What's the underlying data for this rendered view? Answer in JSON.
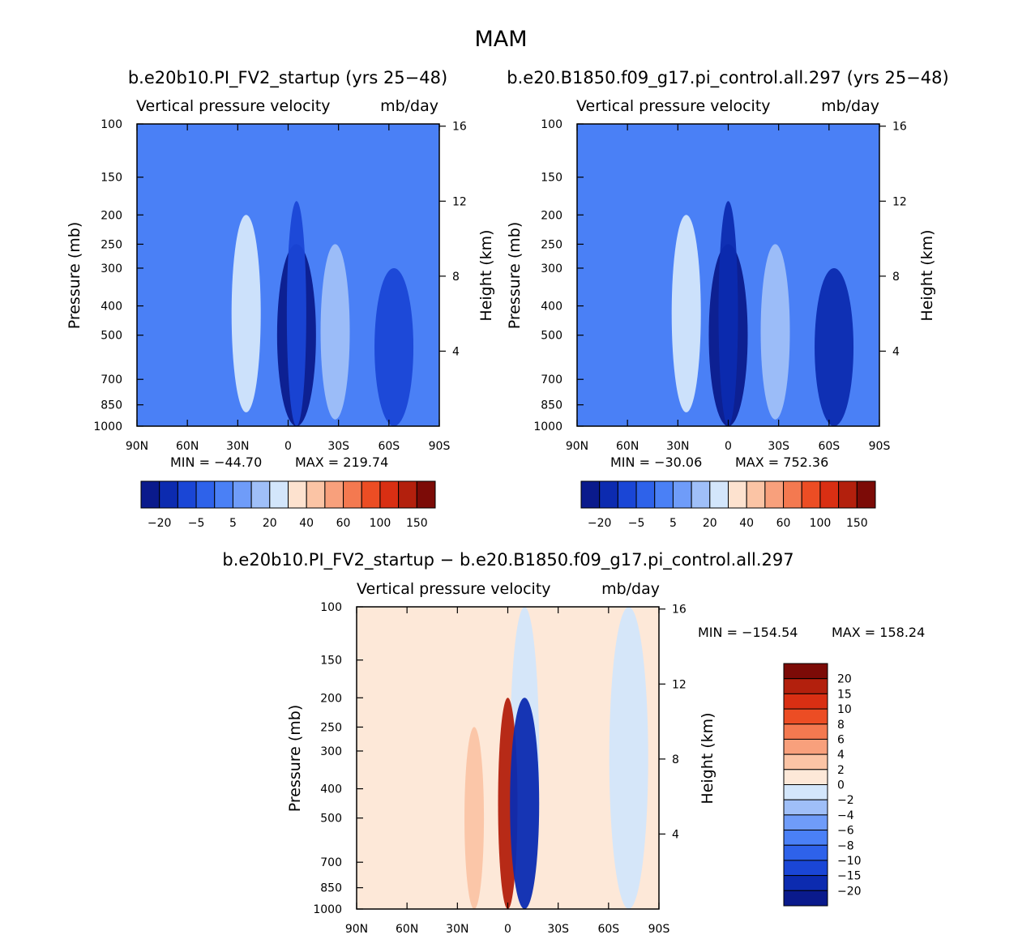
{
  "figure": {
    "season": "MAM"
  },
  "colors": {
    "abs_palette": [
      "#0a1a8c",
      "#0c2bb0",
      "#1a46d6",
      "#2e62ea",
      "#4a80f6",
      "#6f9cf9",
      "#9fbff8",
      "#d3e6fb",
      "#fde2cf",
      "#fbc4a5",
      "#f8a07c",
      "#f47950",
      "#ec4d24",
      "#d92f13",
      "#b3200d",
      "#7c0b07"
    ],
    "diff_palette": [
      "#0a1a8c",
      "#0c2bb0",
      "#1a46d6",
      "#2e62ea",
      "#4a80f6",
      "#6f9cf9",
      "#9fbff8",
      "#d3e6fb",
      "#fde8d8",
      "#fbc4a5",
      "#f8a07c",
      "#f47950",
      "#ec4d24",
      "#d92f13",
      "#b3200d",
      "#7c0b07"
    ],
    "abs_background": "#4a80f6",
    "diff_background": "#fde8d8"
  },
  "chart_data": [
    {
      "type": "heatmap",
      "title": "b.e20b10.PI_FV2_startup (yrs 25−48)",
      "subtitle": "Vertical pressure velocity",
      "units": "mb/day",
      "xlabel": "",
      "ylabel": "Pressure (mb)",
      "ylabel_right": "Height (km)",
      "x_ticks": [
        "90N",
        "60N",
        "30N",
        "0",
        "30S",
        "60S",
        "90S"
      ],
      "y_ticks": [
        "100",
        "150",
        "200",
        "250",
        "300",
        "400",
        "500",
        "700",
        "850",
        "1000"
      ],
      "y_ticks_right": [
        "16",
        "12",
        "8",
        "4"
      ],
      "ylim": [
        1000,
        100
      ],
      "min_label": "MIN = −44.70",
      "max_label": "MAX = 219.74",
      "min": -44.7,
      "max": 219.74,
      "colorbar_labels": [
        "−20",
        "−5",
        "5",
        "20",
        "40",
        "60",
        "100",
        "150"
      ],
      "cells": [
        {
          "lat": 60,
          "p": [
            100,
            1000
          ],
          "level": 4
        },
        {
          "lat": 25,
          "p": [
            200,
            900
          ],
          "level": 7
        },
        {
          "lat": -5,
          "p": [
            250,
            1000
          ],
          "level": 0
        },
        {
          "lat": -5,
          "p": [
            180,
            1000
          ],
          "level": 2
        },
        {
          "lat": -28,
          "p": [
            250,
            950
          ],
          "level": 6
        },
        {
          "lat": -63,
          "p": [
            300,
            1000
          ],
          "level": 2
        }
      ]
    },
    {
      "type": "heatmap",
      "title": "b.e20.B1850.f09_g17.pi_control.all.297 (yrs 25−48)",
      "subtitle": "Vertical pressure velocity",
      "units": "mb/day",
      "xlabel": "",
      "ylabel": "Pressure (mb)",
      "ylabel_right": "Height (km)",
      "x_ticks": [
        "90N",
        "60N",
        "30N",
        "0",
        "30S",
        "60S",
        "90S"
      ],
      "y_ticks": [
        "100",
        "150",
        "200",
        "250",
        "300",
        "400",
        "500",
        "700",
        "850",
        "1000"
      ],
      "y_ticks_right": [
        "16",
        "12",
        "8",
        "4"
      ],
      "ylim": [
        1000,
        100
      ],
      "min_label": "MIN = −30.06",
      "max_label": "MAX = 752.36",
      "min": -30.06,
      "max": 752.36,
      "colorbar_labels": [
        "−20",
        "−5",
        "5",
        "20",
        "40",
        "60",
        "100",
        "150"
      ],
      "cells": [
        {
          "lat": 60,
          "p": [
            100,
            1000
          ],
          "level": 4
        },
        {
          "lat": 25,
          "p": [
            200,
            900
          ],
          "level": 7
        },
        {
          "lat": 0,
          "p": [
            250,
            1000
          ],
          "level": 0
        },
        {
          "lat": 0,
          "p": [
            180,
            1000
          ],
          "level": 1
        },
        {
          "lat": -28,
          "p": [
            250,
            950
          ],
          "level": 6
        },
        {
          "lat": -63,
          "p": [
            300,
            1000
          ],
          "level": 1
        }
      ]
    },
    {
      "type": "heatmap",
      "title": "b.e20b10.PI_FV2_startup − b.e20.B1850.f09_g17.pi_control.all.297",
      "subtitle": "Vertical pressure velocity",
      "units": "mb/day",
      "xlabel": "",
      "ylabel": "Pressure (mb)",
      "ylabel_right": "Height (km)",
      "x_ticks": [
        "90N",
        "60N",
        "30N",
        "0",
        "30S",
        "60S",
        "90S"
      ],
      "y_ticks": [
        "100",
        "150",
        "200",
        "250",
        "300",
        "400",
        "500",
        "700",
        "850",
        "1000"
      ],
      "y_ticks_right": [
        "16",
        "12",
        "8",
        "4"
      ],
      "ylim": [
        1000,
        100
      ],
      "min_label": "MIN = −154.54",
      "max_label": "MAX = 158.24",
      "min": -154.54,
      "max": 158.24,
      "colorbar_labels": [
        "20",
        "15",
        "10",
        "8",
        "6",
        "4",
        "2",
        "0",
        "−2",
        "−4",
        "−6",
        "−8",
        "−10",
        "−15",
        "−20"
      ],
      "cells": [
        {
          "lat": 20,
          "p": [
            250,
            1000
          ],
          "level": 9
        },
        {
          "lat": -10,
          "p": [
            100,
            1000
          ],
          "level": 7
        },
        {
          "lat": -72,
          "p": [
            100,
            1000
          ],
          "level": 7
        },
        {
          "lat": 0,
          "p": [
            200,
            1000
          ],
          "level": 14
        },
        {
          "lat": -10,
          "p": [
            200,
            1000
          ],
          "level": 1
        }
      ]
    }
  ]
}
